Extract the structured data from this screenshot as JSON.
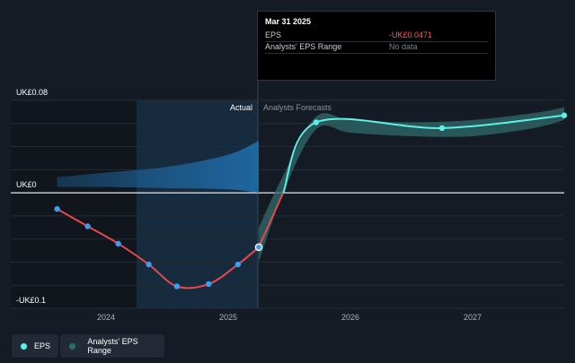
{
  "chart_data": {
    "type": "line",
    "title": "",
    "xlabel": "",
    "ylabel": "",
    "ylim": [
      -0.1,
      0.08
    ],
    "y_tick_labels": [
      "UK£0.08",
      "UK£0",
      "-UK£0.1"
    ],
    "x_tick_labels": [
      "2024",
      "2025",
      "2026",
      "2027"
    ],
    "region_labels": {
      "actual": "Actual",
      "forecast": "Analysts Forecasts"
    },
    "series": [
      {
        "name": "EPS",
        "kind": "actual",
        "x": [
          2023.6,
          2023.85,
          2024.1,
          2024.35,
          2024.58,
          2024.84,
          2025.08,
          2025.25
        ],
        "values": [
          -0.014,
          -0.029,
          -0.044,
          -0.062,
          -0.081,
          -0.079,
          -0.062,
          -0.0471
        ]
      },
      {
        "name": "EPS",
        "kind": "forecast",
        "x": [
          2025.25,
          2025.45,
          2025.72,
          2026.75,
          2027.75
        ],
        "values": [
          -0.0471,
          0.0,
          0.061,
          0.056,
          0.067
        ]
      },
      {
        "name": "Analysts' EPS Range",
        "kind": "range",
        "x": [
          2023.6,
          2024.0,
          2024.5,
          2025.0,
          2025.25
        ],
        "low": [
          0.005,
          0.005,
          0.004,
          0.003,
          0.0
        ],
        "high": [
          0.0135,
          0.0175,
          0.0225,
          0.033,
          0.045
        ]
      },
      {
        "name": "Analysts' EPS Range",
        "kind": "forecast-range",
        "x": [
          2025.25,
          2025.45,
          2025.72,
          2026.0,
          2026.5,
          2027.0,
          2027.5,
          2027.75
        ],
        "low": [
          -0.06,
          0.0,
          0.055,
          0.052,
          0.049,
          0.049,
          0.056,
          0.063
        ],
        "high": [
          -0.03,
          0.015,
          0.066,
          0.063,
          0.061,
          0.063,
          0.069,
          0.074
        ]
      }
    ],
    "colors": {
      "actual_line": "#e5484d",
      "forecast_line": "#5ef0e6",
      "point": "#3d9cf0",
      "band_forecast": "#2f6b6b",
      "band_past": "#1c5e91"
    }
  },
  "tooltip": {
    "date": "Mar 31 2025",
    "rows": [
      {
        "label": "EPS",
        "value": "-UK£0.0471",
        "color": "#ff5a5f"
      },
      {
        "label": "Analysts' EPS Range",
        "value": "No data",
        "color": "#7d838c"
      }
    ]
  },
  "legend": {
    "items": [
      {
        "label": "EPS",
        "color": "#5ef0e6"
      },
      {
        "label": "Analysts' EPS Range",
        "color": "#2f6b6b"
      }
    ]
  }
}
